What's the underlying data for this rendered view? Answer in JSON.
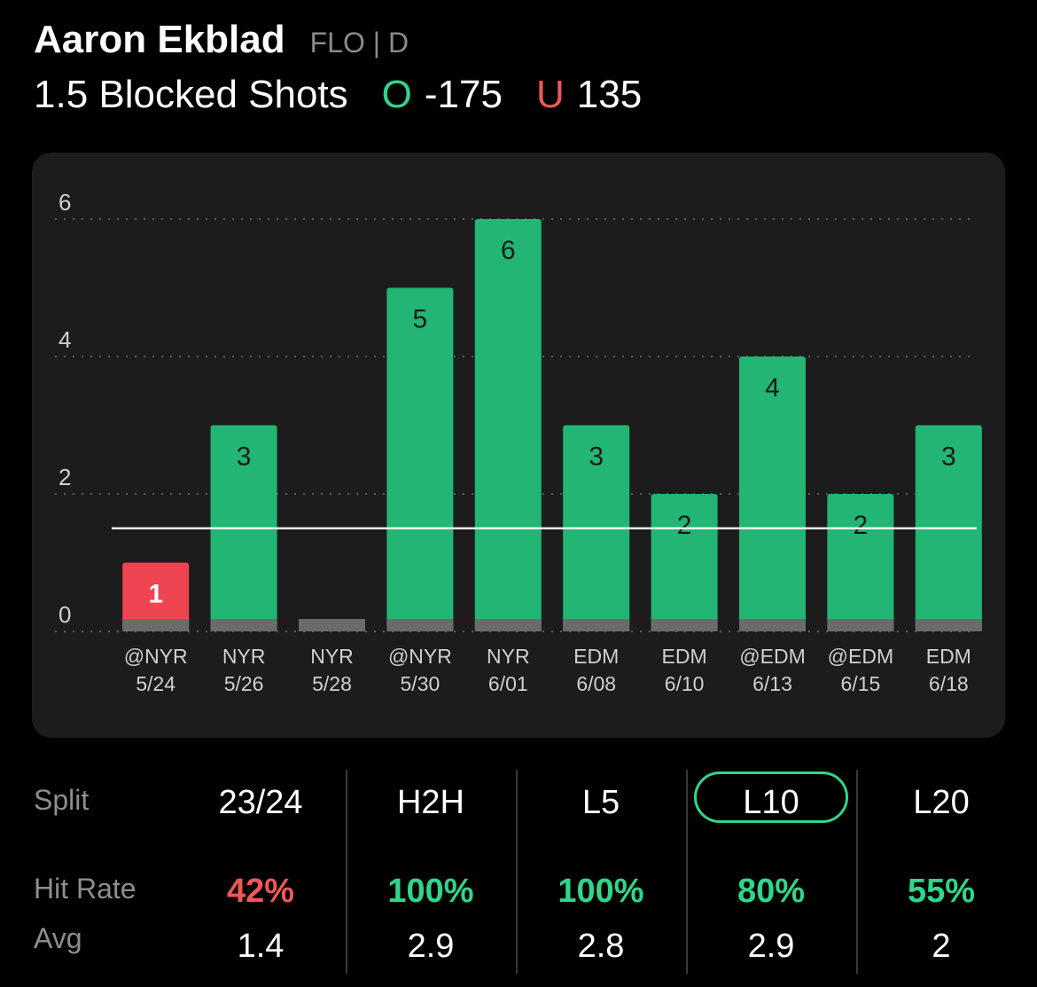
{
  "header": {
    "player_name": "Aaron Ekblad",
    "team_position": "FLO | D",
    "market": "1.5 Blocked Shots",
    "over_letter": "O",
    "over_odds": "-175",
    "under_letter": "U",
    "under_odds": "135"
  },
  "colors": {
    "over_green": "#2fd68a",
    "bar_green": "#22b573",
    "under_red": "#ef4550",
    "text_muted": "#8e8e8e",
    "card_bg": "#1c1c1c"
  },
  "chart_data": {
    "type": "bar",
    "categories": [
      {
        "opponent": "@NYR",
        "date": "5/24"
      },
      {
        "opponent": "NYR",
        "date": "5/26"
      },
      {
        "opponent": "NYR",
        "date": "5/28"
      },
      {
        "opponent": "@NYR",
        "date": "5/30"
      },
      {
        "opponent": "NYR",
        "date": "6/01"
      },
      {
        "opponent": "EDM",
        "date": "6/08"
      },
      {
        "opponent": "EDM",
        "date": "6/10"
      },
      {
        "opponent": "@EDM",
        "date": "6/13"
      },
      {
        "opponent": "@EDM",
        "date": "6/15"
      },
      {
        "opponent": "EDM",
        "date": "6/18"
      }
    ],
    "values": [
      1,
      3,
      0,
      5,
      6,
      3,
      2,
      4,
      2,
      3
    ],
    "value_labels": [
      "1",
      "3",
      "",
      "5",
      "6",
      "3",
      "2",
      "4",
      "2",
      "3"
    ],
    "line": 1.5,
    "yticks": [
      "0",
      "2",
      "4",
      "6"
    ],
    "ylim": [
      0,
      6
    ],
    "grid": true,
    "colors": {
      "over": "#22b573",
      "under": "#ef4550"
    }
  },
  "splits": {
    "row_labels": {
      "split": "Split",
      "hit_rate": "Hit Rate",
      "avg": "Avg"
    },
    "columns": [
      {
        "name": "23/24",
        "hit_rate": "42%",
        "avg": "1.4",
        "hit_color": "#f2555a",
        "selected": false
      },
      {
        "name": "H2H",
        "hit_rate": "100%",
        "avg": "2.9",
        "hit_color": "#2fd68a",
        "selected": false
      },
      {
        "name": "L5",
        "hit_rate": "100%",
        "avg": "2.8",
        "hit_color": "#2fd68a",
        "selected": false
      },
      {
        "name": "L10",
        "hit_rate": "80%",
        "avg": "2.9",
        "hit_color": "#2fd68a",
        "selected": true
      },
      {
        "name": "L20",
        "hit_rate": "55%",
        "avg": "2",
        "hit_color": "#2fd68a",
        "selected": false
      }
    ]
  }
}
